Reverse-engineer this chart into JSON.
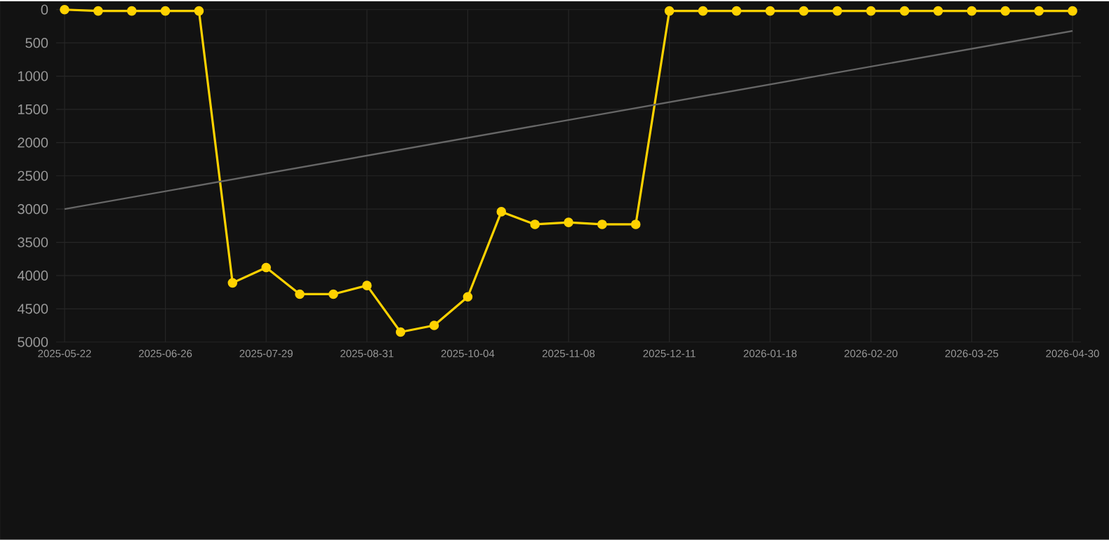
{
  "chart_data": {
    "type": "line",
    "categories": [
      "2025-05-22",
      null,
      null,
      "2025-06-26",
      null,
      null,
      "2025-07-29",
      null,
      null,
      "2025-08-31",
      null,
      null,
      "2025-10-04",
      null,
      null,
      "2025-11-08",
      null,
      null,
      "2025-12-11",
      null,
      null,
      "2026-01-18",
      null,
      null,
      "2026-02-20",
      null,
      null,
      "2026-03-25",
      null,
      null,
      "2026-04-30"
    ],
    "series": [
      {
        "color": "#ffd200",
        "marker": "circle",
        "values": [
          0,
          20,
          20,
          20,
          20,
          4110,
          3880,
          4280,
          4280,
          4150,
          4850,
          4750,
          4320,
          3040,
          3230,
          3200,
          3230,
          3230,
          20,
          20,
          20,
          20,
          20,
          20,
          20,
          20,
          20,
          20,
          20,
          20,
          20
        ]
      },
      {
        "color": "#666666",
        "marker": "none",
        "values": [
          3000,
          null,
          null,
          null,
          null,
          null,
          null,
          null,
          null,
          null,
          null,
          null,
          null,
          null,
          null,
          null,
          null,
          null,
          null,
          null,
          null,
          null,
          null,
          null,
          null,
          null,
          null,
          null,
          null,
          null,
          320
        ]
      }
    ],
    "ylim": [
      5000,
      0
    ],
    "yticks": [
      0,
      500,
      1000,
      1500,
      2000,
      2500,
      3000,
      3500,
      4000,
      4500,
      5000
    ],
    "grid": true,
    "line_style": "solid"
  }
}
